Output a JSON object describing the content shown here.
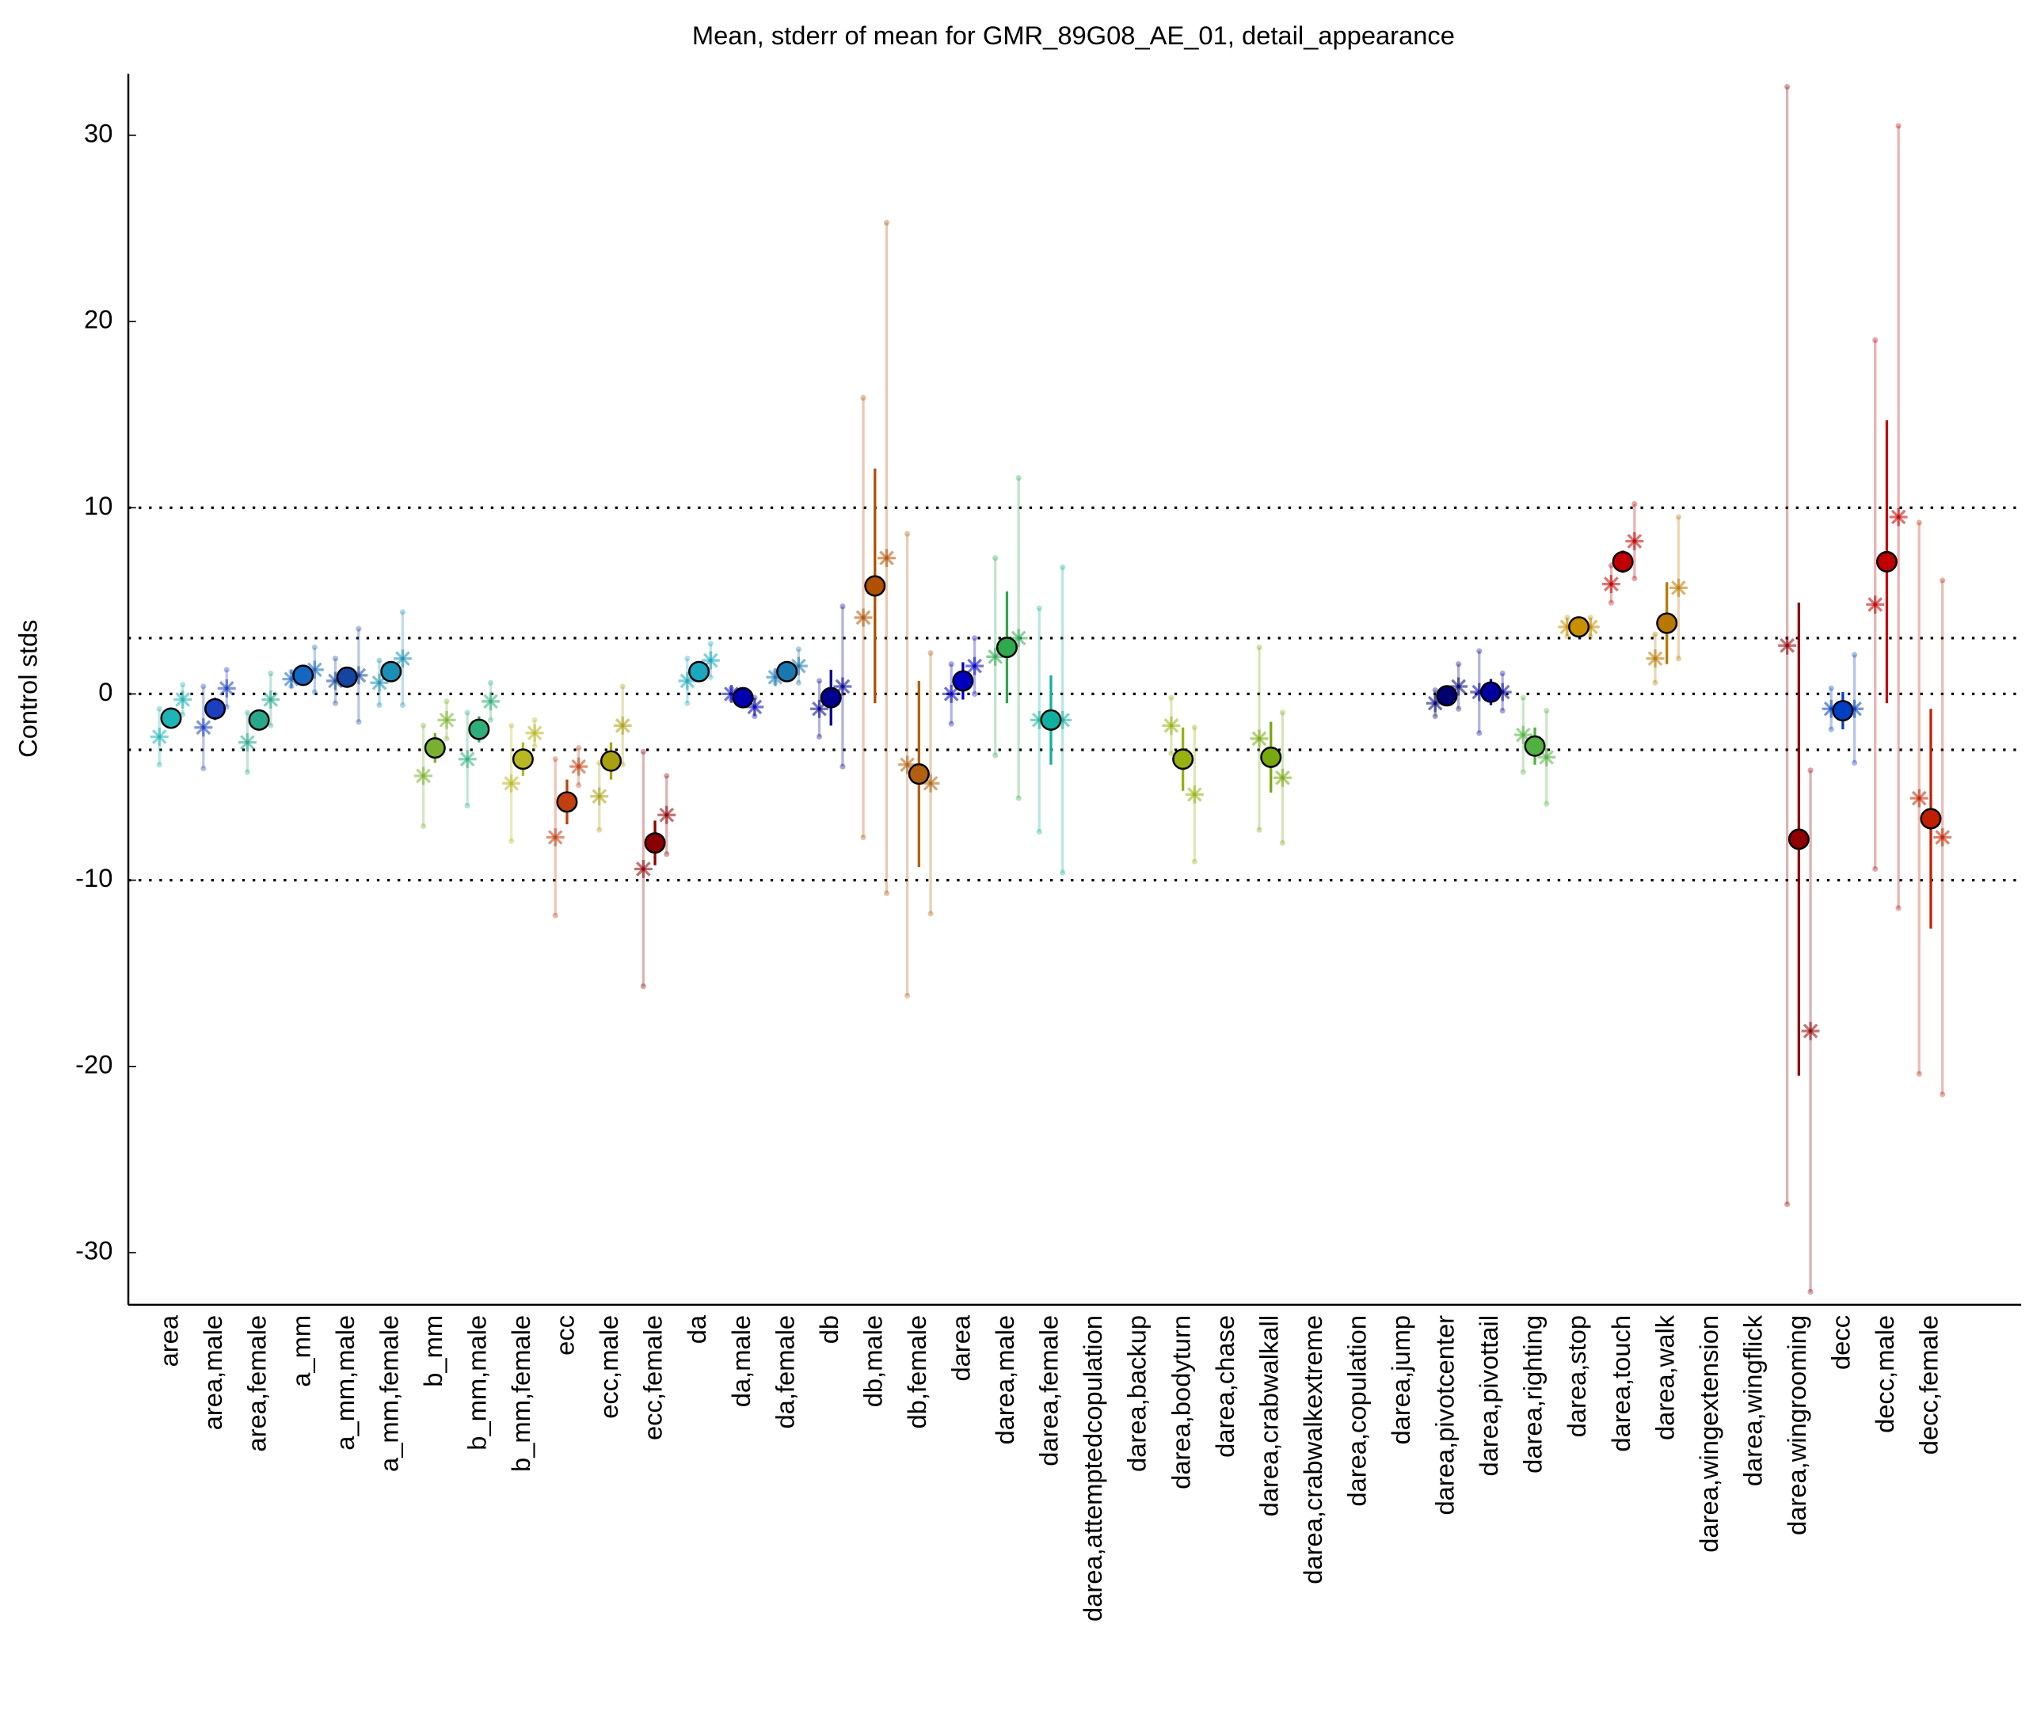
{
  "chart_data": {
    "type": "errorbar",
    "title": "Mean, stderr of mean for GMR_89G08_AE_01, detail_appearance",
    "ylabel": "Control stds",
    "categories": [
      "area",
      "area,male",
      "area,female",
      "a_mm",
      "a_mm,male",
      "a_mm,female",
      "b_mm",
      "b_mm,male",
      "b_mm,female",
      "ecc",
      "ecc,male",
      "ecc,female",
      "da",
      "da,male",
      "da,female",
      "db",
      "db,male",
      "db,female",
      "darea",
      "darea,male",
      "darea,female",
      "darea,attemptedcopulation",
      "darea,backup",
      "darea,bodyturn",
      "darea,chase",
      "darea,crabwalkall",
      "darea,crabwalkextreme",
      "darea,copulation",
      "darea,jump",
      "darea,pivotcenter",
      "darea,pivottail",
      "darea,righting",
      "darea,stop",
      "darea,touch",
      "darea,walk",
      "darea,wingextension",
      "darea,wingflick",
      "darea,wingrooming",
      "decc",
      "decc,male",
      "decc,female"
    ],
    "colors": [
      "#1fb5b5",
      "#1c3fbf",
      "#2aa88a",
      "#1566c0",
      "#1445a0",
      "#1a8fb5",
      "#7ab030",
      "#2fae7a",
      "#b8b820",
      "#c04010",
      "#a8a010",
      "#8b0000",
      "#1aa8c0",
      "#0000b0",
      "#1a78b0",
      "#000090",
      "#b05000",
      "#b06010",
      "#0000c0",
      "#30a850",
      "#10b0a0",
      "#909090",
      "#909090",
      "#98b010",
      "#909090",
      "#78a810",
      "#909090",
      "#909090",
      "#909090",
      "#000070",
      "#0000a0",
      "#50b040",
      "#c89000",
      "#c00000",
      "#b87800",
      "#909090",
      "#909090",
      "#900000",
      "#0040c0",
      "#c00000",
      "#c02000"
    ],
    "values": [
      -1.3,
      -0.8,
      -1.4,
      1.0,
      0.9,
      1.2,
      -2.9,
      -1.9,
      -3.5,
      -5.8,
      -3.6,
      -8.0,
      1.2,
      -0.2,
      1.2,
      -0.2,
      5.8,
      -4.3,
      0.7,
      2.5,
      -1.4,
      null,
      null,
      -3.5,
      null,
      -3.4,
      null,
      null,
      null,
      -0.1,
      0.1,
      -2.8,
      3.6,
      7.1,
      3.8,
      null,
      null,
      -7.8,
      -0.9,
      7.1,
      -6.7
    ],
    "errors": [
      0.4,
      0.6,
      0.5,
      0.2,
      0.4,
      0.5,
      0.8,
      0.7,
      0.9,
      1.2,
      1.0,
      1.2,
      0.5,
      0.3,
      0.3,
      1.5,
      6.3,
      5.0,
      1.0,
      3.0,
      2.4,
      null,
      null,
      1.7,
      null,
      1.9,
      null,
      null,
      null,
      0.3,
      0.7,
      1.0,
      0.4,
      0.6,
      2.2,
      null,
      null,
      12.7,
      1.0,
      7.6,
      5.9
    ],
    "star_left": [
      -2.3,
      -1.8,
      -2.6,
      0.8,
      0.7,
      0.6,
      -4.4,
      -3.5,
      -4.8,
      -7.7,
      -5.5,
      -9.4,
      0.7,
      0.0,
      0.9,
      -0.8,
      4.1,
      -3.8,
      0.0,
      2.0,
      -1.4,
      null,
      null,
      -1.7,
      null,
      -2.4,
      null,
      null,
      null,
      -0.5,
      0.1,
      -2.2,
      3.6,
      5.9,
      1.9,
      null,
      null,
      2.6,
      -0.8,
      4.8,
      -5.6
    ],
    "star_left_errors": [
      1.5,
      2.2,
      1.6,
      0.4,
      1.2,
      1.2,
      2.7,
      2.5,
      3.1,
      4.2,
      1.8,
      6.3,
      1.2,
      0.3,
      0.3,
      1.5,
      11.8,
      12.4,
      1.6,
      5.3,
      6.0,
      null,
      null,
      1.5,
      null,
      4.9,
      null,
      null,
      null,
      0.7,
      2.2,
      2.0,
      0.5,
      1.0,
      1.3,
      null,
      null,
      30,
      1.1,
      14.2,
      14.8
    ],
    "star_right": [
      -0.3,
      0.3,
      -0.3,
      1.3,
      1.0,
      1.9,
      -1.4,
      -0.4,
      -2.1,
      -3.9,
      -1.7,
      -6.5,
      1.8,
      -0.7,
      1.5,
      0.4,
      7.3,
      -4.8,
      1.5,
      3.0,
      -1.4,
      null,
      null,
      -5.4,
      null,
      -4.5,
      null,
      null,
      null,
      0.4,
      0.1,
      -3.4,
      3.6,
      8.2,
      5.7,
      null,
      null,
      -18.1,
      -0.8,
      9.5,
      -7.7
    ],
    "star_right_errors": [
      0.8,
      1.0,
      1.4,
      1.2,
      2.5,
      2.5,
      1.0,
      1.0,
      0.7,
      1.0,
      2.1,
      2.1,
      0.9,
      0.5,
      0.9,
      4.3,
      18,
      7.0,
      1.5,
      8.6,
      8.2,
      null,
      null,
      3.6,
      null,
      3.5,
      null,
      null,
      null,
      1.2,
      1.0,
      2.5,
      0.5,
      2.0,
      3.8,
      null,
      null,
      14,
      2.9,
      21,
      13.8
    ],
    "hlines": [
      10,
      3,
      0,
      -3,
      -10
    ],
    "ylim": [
      -32.8,
      33.3
    ],
    "yticks": [
      -30,
      -20,
      -10,
      0,
      10,
      20,
      30
    ]
  }
}
